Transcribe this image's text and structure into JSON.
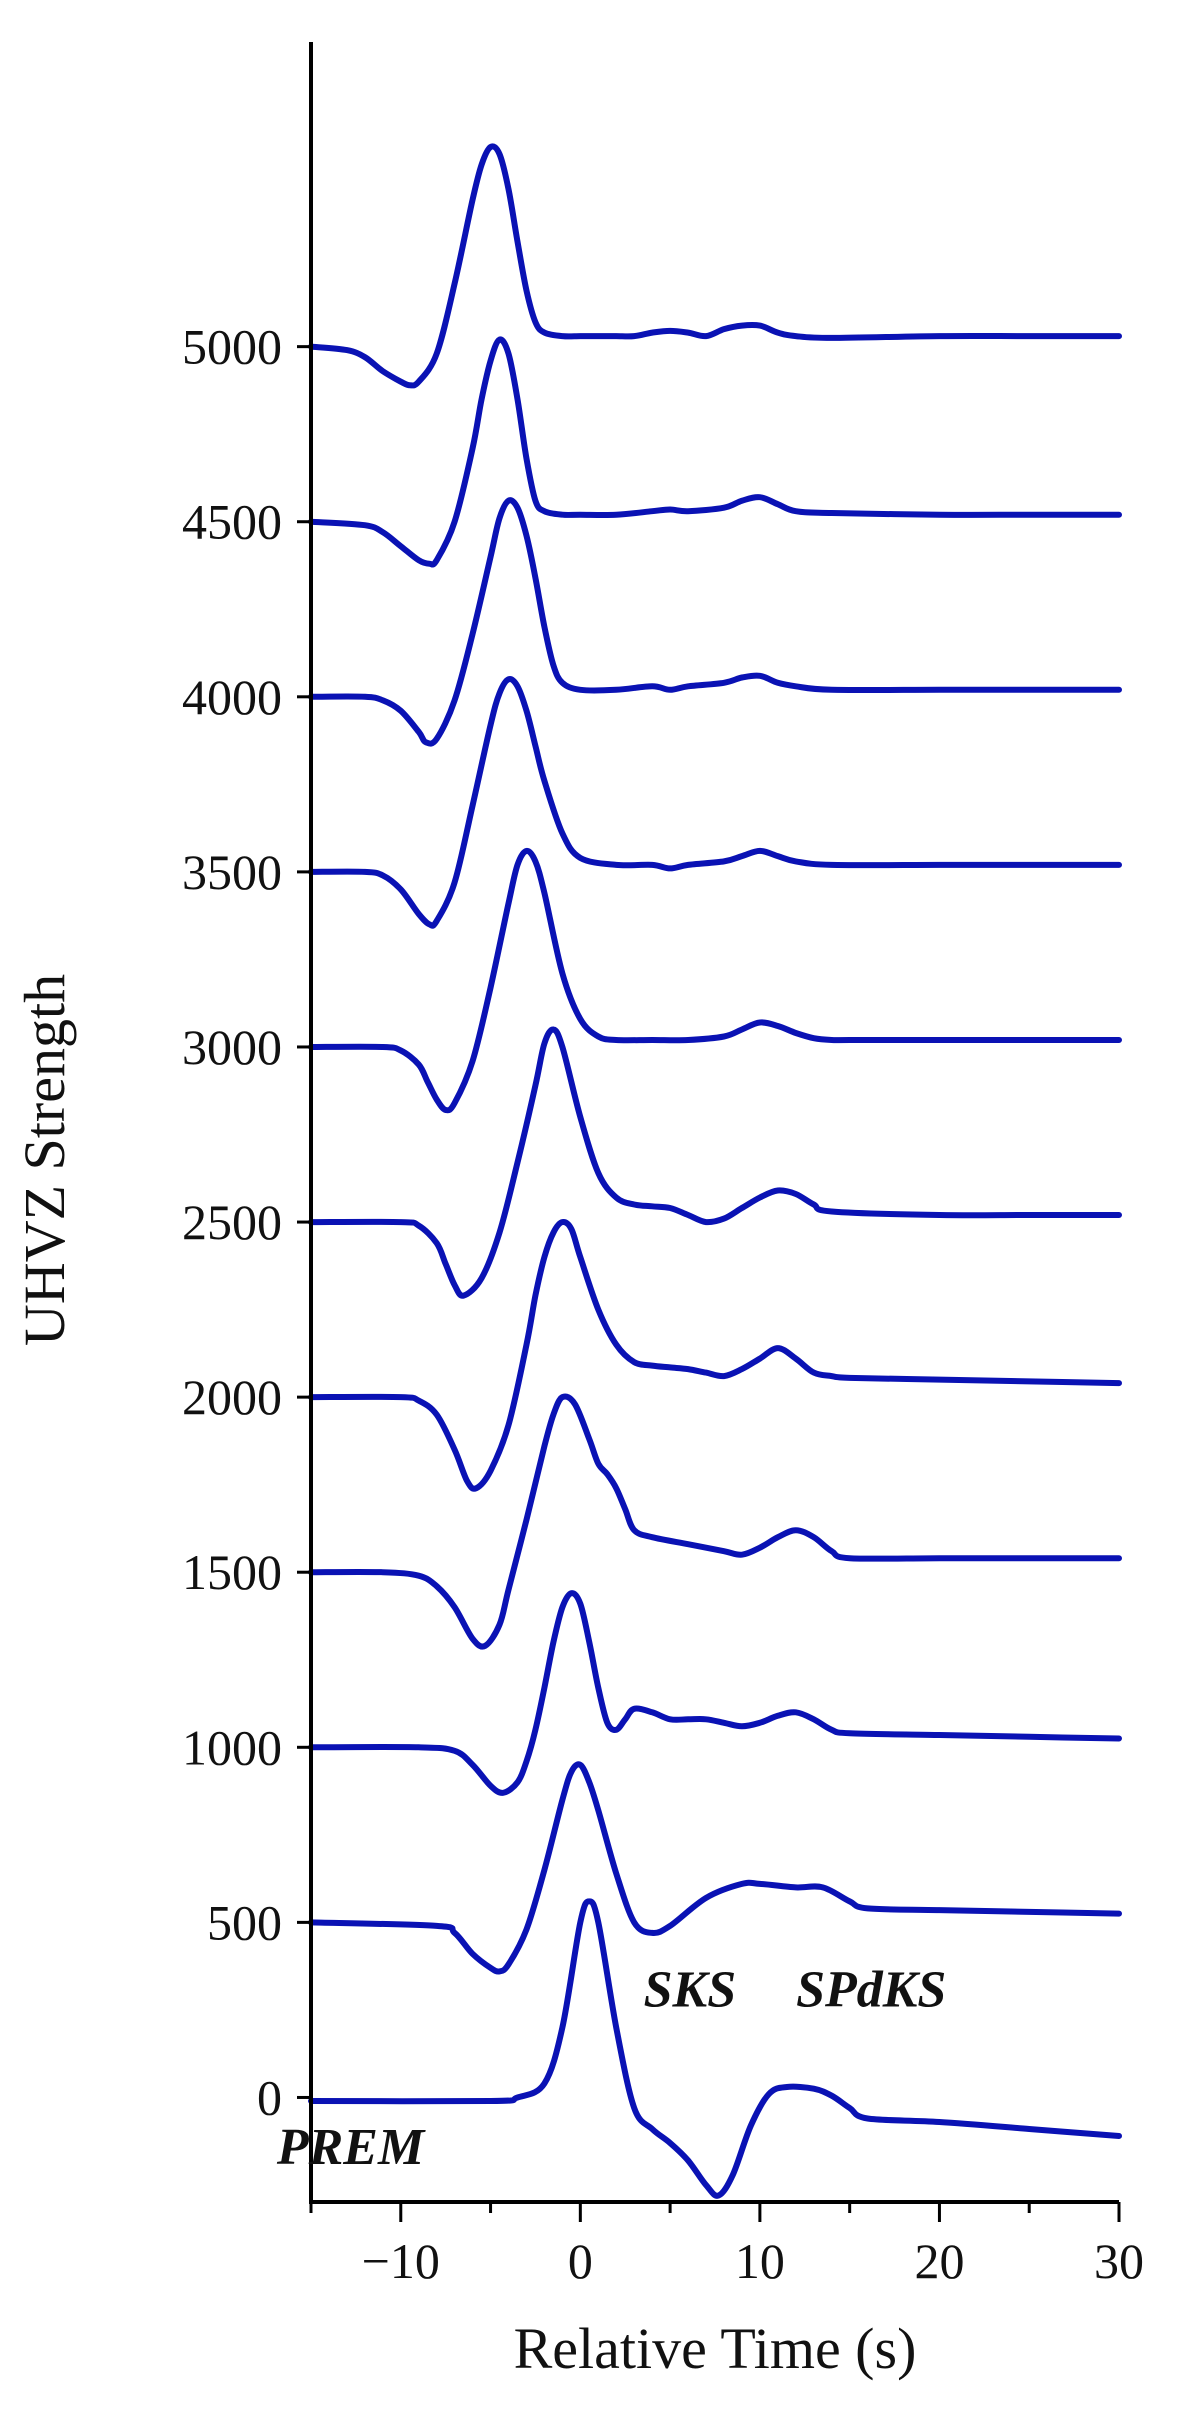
{
  "chart_data": {
    "type": "line",
    "title": "",
    "xlabel": "Relative Time (s)",
    "ylabel": "UHVZ Strength",
    "xlim": [
      -15,
      30
    ],
    "ylim": [
      -230,
      5870
    ],
    "x_ticks": [
      -10,
      0,
      10,
      20,
      30
    ],
    "x_tick_labels": [
      "−10",
      "0",
      "10",
      "20",
      "30"
    ],
    "y_ticks": [
      0,
      500,
      1000,
      1500,
      2000,
      2500,
      3000,
      3500,
      4000,
      4500,
      5000
    ],
    "y_tick_labels": [
      "0",
      "500",
      "1000",
      "1500",
      "2000",
      "2500",
      "3000",
      "3500",
      "4000",
      "4500",
      "5000"
    ],
    "x_minor_step": 5,
    "grid": false,
    "line_color": "#0a12b4",
    "annotations": [
      {
        "text": "PREM",
        "x": -12.8,
        "y": -190
      },
      {
        "text": "SKS",
        "x": 6.1,
        "y": 260
      },
      {
        "text": "SPdKS",
        "x": 16.2,
        "y": 260
      }
    ],
    "series": [
      {
        "offset": 0,
        "x": [
          -15,
          -5,
          -3.5,
          -2,
          -1,
          0,
          0.5,
          1,
          2,
          3,
          4,
          5,
          6,
          7,
          7.7,
          8.5,
          9.5,
          10.5,
          11.5,
          13,
          14,
          15,
          16,
          20,
          25,
          30
        ],
        "y": [
          -10,
          -10,
          0,
          40,
          200,
          500,
          560,
          500,
          200,
          -30,
          -90,
          -130,
          -180,
          -250,
          -280,
          -220,
          -80,
          10,
          30,
          25,
          5,
          -30,
          -60,
          -70,
          -90,
          -110
        ]
      },
      {
        "offset": 500,
        "x": [
          -15,
          -8,
          -7,
          -6,
          -5,
          -4.5,
          -4,
          -3,
          -2,
          -1,
          -0.5,
          0,
          0.5,
          1,
          2,
          3,
          4,
          5,
          7,
          9,
          10,
          12,
          13.5,
          15,
          16,
          20,
          25,
          30
        ],
        "y": [
          500,
          490,
          470,
          410,
          370,
          360,
          380,
          480,
          650,
          850,
          930,
          950,
          900,
          820,
          640,
          500,
          470,
          490,
          570,
          610,
          610,
          600,
          600,
          560,
          540,
          535,
          530,
          525
        ]
      },
      {
        "offset": 1000,
        "x": [
          -15,
          -9,
          -7,
          -6,
          -5,
          -4.3,
          -3.5,
          -3,
          -2.5,
          -2,
          -1.5,
          -1,
          -0.5,
          0,
          0.5,
          1,
          1.5,
          2,
          2.5,
          3,
          4,
          5,
          6,
          7,
          8,
          9,
          10,
          11,
          12,
          13,
          14,
          15,
          20,
          25,
          30
        ],
        "y": [
          1000,
          1000,
          990,
          950,
          890,
          870,
          900,
          960,
          1050,
          1170,
          1300,
          1400,
          1440,
          1410,
          1300,
          1170,
          1070,
          1050,
          1080,
          1110,
          1100,
          1080,
          1080,
          1080,
          1070,
          1060,
          1070,
          1090,
          1100,
          1080,
          1050,
          1040,
          1035,
          1030,
          1025
        ]
      },
      {
        "offset": 1500,
        "x": [
          -15,
          -11,
          -9,
          -8,
          -7,
          -6,
          -5.3,
          -4.5,
          -4,
          -3,
          -2,
          -1.5,
          -1,
          -0.3,
          0.5,
          1,
          1.5,
          2,
          2.5,
          3,
          4,
          6,
          8,
          9,
          10,
          11,
          12,
          13,
          14,
          15,
          20,
          25,
          30
        ],
        "y": [
          1500,
          1500,
          1490,
          1460,
          1400,
          1310,
          1290,
          1350,
          1450,
          1650,
          1860,
          1950,
          2000,
          1980,
          1880,
          1810,
          1780,
          1740,
          1680,
          1620,
          1600,
          1580,
          1560,
          1550,
          1570,
          1600,
          1620,
          1600,
          1560,
          1540,
          1540,
          1540,
          1540
        ]
      },
      {
        "offset": 2000,
        "x": [
          -15,
          -10,
          -9,
          -8,
          -7,
          -6.3,
          -5.8,
          -5,
          -4,
          -3,
          -2.5,
          -2,
          -1.5,
          -1,
          -0.5,
          0,
          1,
          2,
          3,
          4,
          5,
          6,
          7,
          8,
          9,
          10,
          11,
          12,
          13,
          14,
          15,
          20,
          25,
          30
        ],
        "y": [
          2000,
          2000,
          1990,
          1950,
          1850,
          1760,
          1740,
          1790,
          1920,
          2150,
          2290,
          2400,
          2470,
          2500,
          2480,
          2400,
          2250,
          2150,
          2100,
          2090,
          2085,
          2080,
          2070,
          2060,
          2080,
          2110,
          2140,
          2110,
          2070,
          2060,
          2055,
          2050,
          2045,
          2040
        ]
      },
      {
        "offset": 2500,
        "x": [
          -15,
          -10,
          -9,
          -8,
          -7.5,
          -7,
          -6.5,
          -5.5,
          -4.5,
          -3.5,
          -2.5,
          -2,
          -1.5,
          -1,
          0,
          1,
          2,
          3,
          4,
          5,
          6,
          7,
          8,
          9,
          10,
          11,
          12,
          13,
          14,
          20,
          25,
          30
        ],
        "y": [
          2500,
          2500,
          2490,
          2440,
          2380,
          2320,
          2290,
          2340,
          2470,
          2670,
          2890,
          3010,
          3050,
          3000,
          2800,
          2640,
          2570,
          2550,
          2545,
          2540,
          2520,
          2500,
          2510,
          2540,
          2570,
          2590,
          2580,
          2550,
          2530,
          2520,
          2520,
          2520
        ]
      },
      {
        "offset": 3000,
        "x": [
          -15,
          -11,
          -10,
          -9,
          -8.5,
          -8,
          -7.5,
          -7,
          -6,
          -5,
          -4,
          -3.5,
          -3,
          -2.5,
          -2,
          -1,
          0,
          1,
          2,
          4,
          6,
          8,
          9,
          10,
          11,
          12,
          13,
          14,
          15,
          20,
          25,
          30
        ],
        "y": [
          3000,
          3000,
          2990,
          2950,
          2900,
          2850,
          2820,
          2840,
          2960,
          3170,
          3410,
          3520,
          3560,
          3530,
          3440,
          3210,
          3080,
          3030,
          3020,
          3020,
          3020,
          3030,
          3050,
          3070,
          3060,
          3040,
          3025,
          3020,
          3020,
          3020,
          3020,
          3020
        ]
      },
      {
        "offset": 3500,
        "x": [
          -15,
          -12,
          -11,
          -10,
          -9,
          -8.4,
          -8,
          -7,
          -6,
          -5,
          -4.5,
          -4,
          -3.5,
          -3,
          -2.5,
          -2,
          -1,
          0,
          2,
          4,
          5,
          6,
          8,
          9,
          10,
          11,
          12,
          14,
          20,
          25,
          30
        ],
        "y": [
          3500,
          3500,
          3490,
          3450,
          3380,
          3350,
          3360,
          3470,
          3690,
          3920,
          4010,
          4050,
          4030,
          3960,
          3860,
          3760,
          3610,
          3540,
          3520,
          3520,
          3510,
          3520,
          3530,
          3545,
          3560,
          3545,
          3530,
          3520,
          3520,
          3520,
          3520
        ]
      },
      {
        "offset": 4000,
        "x": [
          -15,
          -12,
          -11,
          -10,
          -9,
          -8.6,
          -8,
          -7,
          -6,
          -5,
          -4.5,
          -4,
          -3.5,
          -3,
          -2.5,
          -2,
          -1.5,
          -1,
          0,
          2,
          4,
          5,
          6,
          8,
          9,
          10,
          11,
          12,
          14,
          20,
          25,
          30
        ],
        "y": [
          4000,
          4000,
          3990,
          3960,
          3900,
          3870,
          3880,
          3990,
          4180,
          4400,
          4510,
          4560,
          4540,
          4460,
          4340,
          4200,
          4090,
          4040,
          4020,
          4020,
          4030,
          4020,
          4030,
          4040,
          4055,
          4060,
          4040,
          4030,
          4020,
          4020,
          4020,
          4020
        ]
      },
      {
        "offset": 4500,
        "x": [
          -15,
          -12,
          -11,
          -10,
          -9,
          -8.4,
          -8,
          -7,
          -6,
          -5.5,
          -5,
          -4.5,
          -4,
          -3.5,
          -3,
          -2.5,
          -2,
          -1,
          0,
          2,
          4,
          5,
          6,
          8,
          9,
          10,
          11,
          12,
          14,
          20,
          25,
          30
        ],
        "y": [
          4500,
          4490,
          4470,
          4430,
          4390,
          4380,
          4390,
          4500,
          4710,
          4850,
          4960,
          5020,
          4980,
          4850,
          4680,
          4560,
          4530,
          4520,
          4520,
          4520,
          4530,
          4535,
          4530,
          4540,
          4560,
          4570,
          4550,
          4530,
          4525,
          4520,
          4520,
          4520
        ]
      },
      {
        "offset": 5000,
        "x": [
          -15,
          -13,
          -12,
          -11,
          -10,
          -9.5,
          -9,
          -8,
          -7,
          -6,
          -5.5,
          -5,
          -4.5,
          -4,
          -3.5,
          -3,
          -2.5,
          -2,
          -1,
          0,
          1,
          2,
          3,
          4,
          5,
          6,
          7,
          8,
          9,
          10,
          11,
          12,
          14,
          20,
          25,
          30
        ],
        "y": [
          5000,
          4990,
          4970,
          4930,
          4900,
          4890,
          4900,
          4980,
          5180,
          5420,
          5520,
          5570,
          5550,
          5450,
          5300,
          5160,
          5070,
          5040,
          5030,
          5030,
          5030,
          5030,
          5030,
          5040,
          5045,
          5040,
          5030,
          5050,
          5060,
          5060,
          5040,
          5030,
          5025,
          5030,
          5030,
          5030
        ]
      }
    ]
  }
}
